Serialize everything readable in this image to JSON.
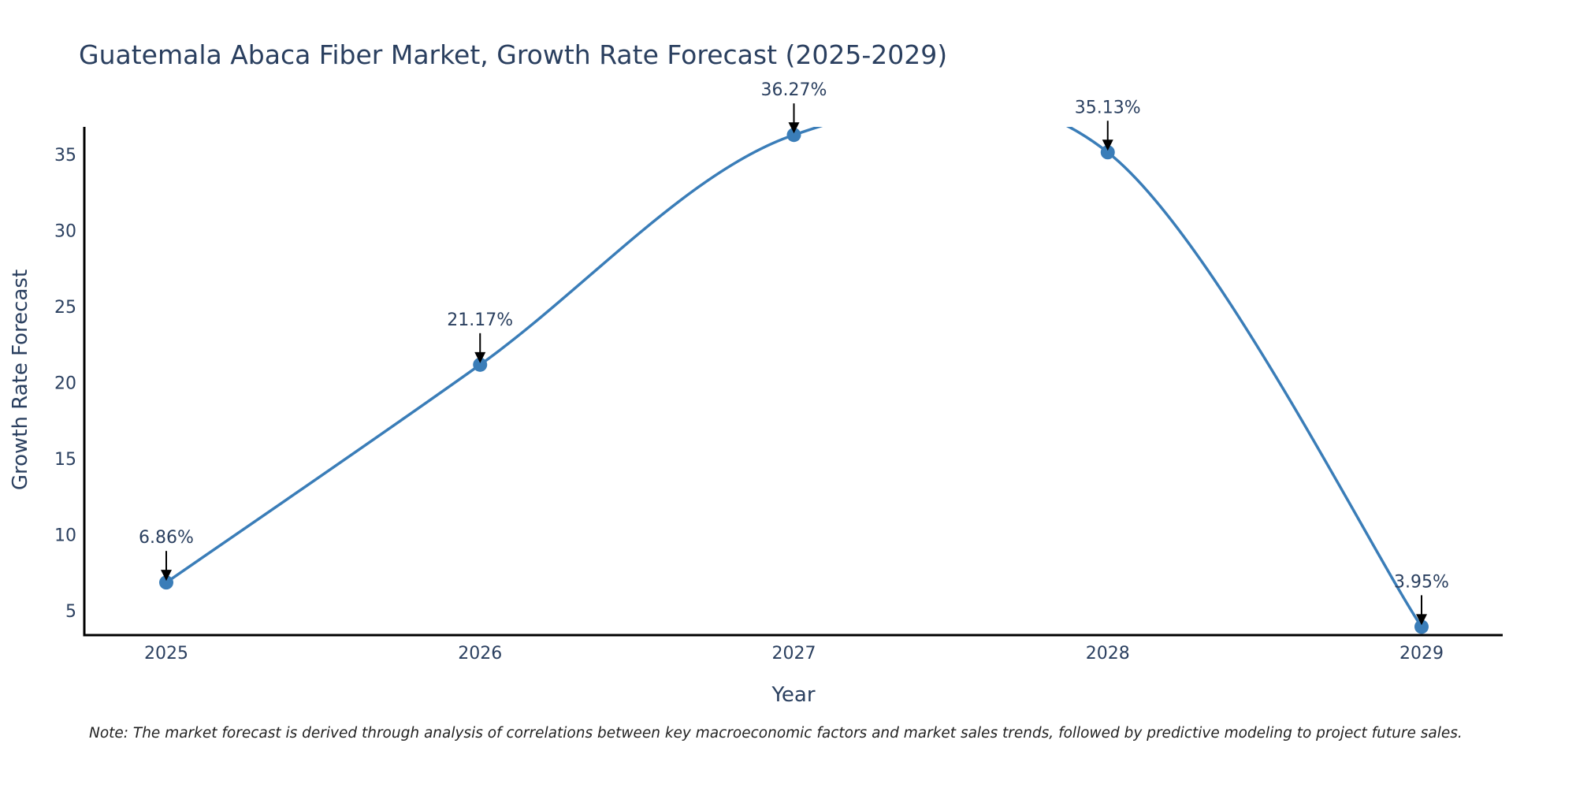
{
  "chart_data": {
    "type": "line",
    "title": "Guatemala Abaca Fiber Market, Growth Rate Forecast (2025-2029)",
    "xlabel": "Year",
    "ylabel": "Growth Rate Forecast",
    "categories": [
      "2025",
      "2026",
      "2027",
      "2028",
      "2029"
    ],
    "series": [
      {
        "name": "Growth Rate Forecast",
        "values": [
          6.86,
          21.17,
          36.27,
          35.13,
          3.95
        ],
        "data_labels": [
          "6.86%",
          "21.17%",
          "36.27%",
          "35.13%",
          "3.95%"
        ]
      }
    ],
    "ylim": [
      3.4,
      36.8
    ],
    "yticks": [
      5,
      10,
      15,
      20,
      25,
      30,
      35
    ],
    "ytick_labels": [
      "5",
      "10",
      "15",
      "20",
      "25",
      "30",
      "35"
    ],
    "grid": false,
    "line_color": "#3a7db8",
    "marker_color": "#3a7db8",
    "arrow_color": "#000000",
    "note": "Note: The market forecast is derived through analysis of correlations between key macroeconomic factors and market sales trends, followed by predictive modeling to project future sales."
  }
}
